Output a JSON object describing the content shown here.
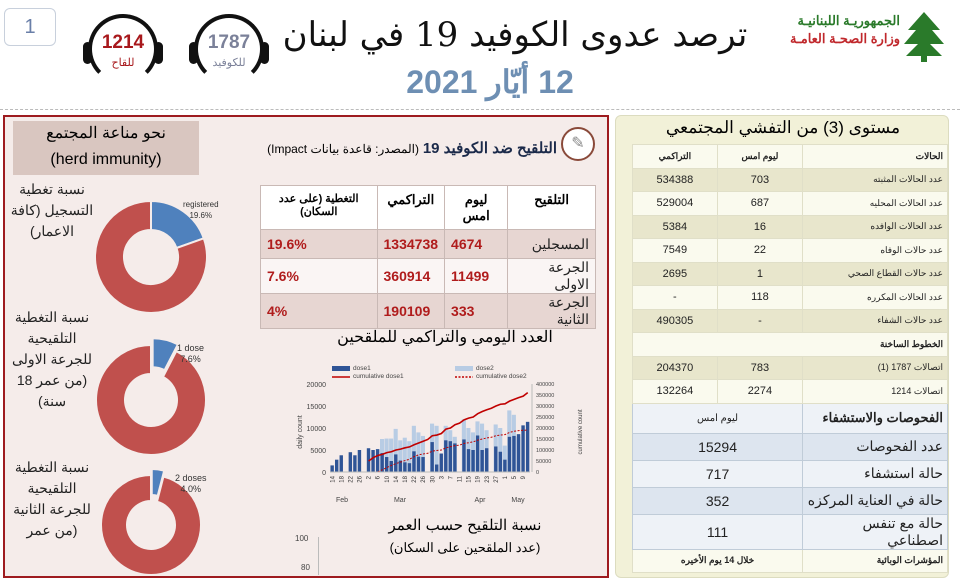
{
  "page_number": "1",
  "hotlines": [
    {
      "number": "1214",
      "label": "للقاح",
      "color": "#a8181c"
    },
    {
      "number": "1787",
      "label": "للكوفيد",
      "color": "#7b8199"
    }
  ],
  "header": {
    "title": "ترصد عدوى الكوفيد 19 في لبنان",
    "date": "12 أيّار 2021",
    "gov_line1": "الجمهوريـة اللبنانيـة",
    "gov_line2": "وزارة الصحـة العامـة",
    "gov_color1": "#2a7a2a",
    "gov_color2": "#c0282c"
  },
  "herd": {
    "line1": "نحو مناعة المجتمع",
    "line2": "(herd immunity)"
  },
  "donuts": [
    {
      "label": "نسبة تغطية التسجيل (كافة الاعمار)",
      "slice_label": "registered",
      "percent_text": "19.6%",
      "percent": 19.6
    },
    {
      "label": "نسبة التغطية التلقيحية للجرعة الاولى (من عمر 18 سنة)",
      "slice_label": "1 dose",
      "percent_text": "7.6%",
      "percent": 7.6
    },
    {
      "label": "نسبة التغطية التلقيحية للجرعة الثانية (من عمر",
      "slice_label": "2 doses",
      "percent_text": "4.0%",
      "percent": 4.0
    }
  ],
  "colors": {
    "blue": "#4f81bd",
    "red": "#c0504d",
    "dark_red": "#9e1b1f"
  },
  "vaccination": {
    "title": "التلقيح ضد الكوفيد 19",
    "source": "(المصدر: قاعدة بيانات Impact)",
    "headers": [
      "التلقيح",
      "ليوم امس",
      "التراكمي",
      "التغطية (على عدد السكان)"
    ],
    "rows": [
      [
        "المسجلين",
        "4674",
        "1334738",
        "19.6%"
      ],
      [
        "الجرعة الاولى",
        "11499",
        "360914",
        "7.6%"
      ],
      [
        "الجرعة الثانية",
        "333",
        "190109",
        "4%"
      ]
    ]
  },
  "chart_data": [
    {
      "type": "bar",
      "title": "العدد اليومي والتراكمي للملقحين",
      "ylabel": "daily count",
      "y2label": "cumulative count",
      "ylim": [
        0,
        20000
      ],
      "y2lim": [
        0,
        400000
      ],
      "yticks": [
        "0",
        "5000",
        "10000",
        "15000",
        "20000"
      ],
      "y2ticks": [
        "0",
        "50000",
        "100000",
        "150000",
        "200000",
        "250000",
        "300000",
        "350000",
        "400000"
      ],
      "xticks": [
        "14",
        "18",
        "22",
        "26",
        "2",
        "6",
        "10",
        "14",
        "18",
        "22",
        "26",
        "30",
        "3",
        "7",
        "11",
        "15",
        "19",
        "23",
        "27",
        "1",
        "5",
        "9"
      ],
      "months": [
        "Feb",
        "Mar",
        "Apr",
        "May"
      ],
      "legend": [
        "dose1",
        "dose2",
        "cumulative dose1",
        "cumulative dose2"
      ],
      "series": [
        {
          "name": "dose1",
          "values": [
            1500,
            2800,
            3800,
            0,
            4500,
            3800,
            5000,
            0,
            5400,
            5000,
            5200,
            4300,
            3400,
            2500,
            4000,
            2600,
            2200,
            2000,
            4700,
            3500,
            3400,
            0,
            6800,
            1700,
            4200,
            7200,
            7000,
            6500,
            0,
            7400,
            5200,
            5000,
            8300,
            5000,
            5400,
            0,
            5800,
            4600,
            2800,
            8000,
            8200,
            8600,
            10600,
            11400
          ]
        },
        {
          "name": "dose2",
          "values": [
            0,
            0,
            0,
            0,
            0,
            0,
            0,
            0,
            0,
            0,
            0,
            7500,
            7600,
            7600,
            9800,
            7200,
            7800,
            7000,
            10500,
            9000,
            8200,
            0,
            11000,
            10500,
            0,
            10500,
            9500,
            8000,
            0,
            12000,
            10000,
            9000,
            11500,
            11000,
            9500,
            0,
            10800,
            10000,
            6000,
            14000,
            13000,
            8000,
            0,
            0
          ]
        },
        {
          "name": "cumulative dose1",
          "values": [
            null,
            null,
            null,
            null,
            null,
            null,
            null,
            null,
            50000,
            65000,
            75000,
            80000,
            88000,
            92000,
            100000,
            104000,
            110000,
            114000,
            124000,
            132000,
            140000,
            148000,
            165000,
            168000,
            175000,
            195000,
            200000,
            215000,
            222000,
            237000,
            245000,
            250000,
            265000,
            275000,
            283000,
            290000,
            300000,
            308000,
            310000,
            322000,
            330000,
            338000,
            345000,
            360914
          ]
        },
        {
          "name": "cumulative dose2",
          "values": [
            null,
            null,
            null,
            null,
            null,
            null,
            null,
            null,
            null,
            null,
            0,
            10000,
            20000,
            30000,
            38000,
            45000,
            52000,
            58000,
            70000,
            78000,
            82000,
            85000,
            95000,
            98000,
            100000,
            110000,
            115000,
            120000,
            122000,
            130000,
            133000,
            137000,
            145000,
            150000,
            155000,
            158000,
            165000,
            168000,
            170000,
            180000,
            185000,
            188000,
            190000,
            190109
          ]
        }
      ]
    },
    {
      "type": "bar",
      "title": "نسبة التلقيح حسب العمر",
      "subtitle": "(عدد الملقحين على السكان)",
      "yticks": [
        "80",
        "100"
      ]
    }
  ],
  "community": {
    "title": "مستوى (3) من التفشي المجتمعي",
    "cases_header": [
      "الحالات",
      "ليوم امس",
      "التراكمي"
    ],
    "cases": [
      [
        "عدد الحالات المثبته",
        "703",
        "534388"
      ],
      [
        "عدد الحالات المحليه",
        "687",
        "529004"
      ],
      [
        "عدد الحالات الوافده",
        "16",
        "5384"
      ],
      [
        "عدد حالات الوفاه",
        "22",
        "7549"
      ],
      [
        "عدد حالات القطاع الصحي",
        "1",
        "2695"
      ],
      [
        "عدد الحالات المكرره",
        "118",
        "-"
      ],
      [
        "عدد حالات الشفاء",
        "-",
        "490305"
      ]
    ],
    "hotlines_header": "الخطوط الساخنة",
    "hotlines": [
      [
        "اتصالات 1787 (1)",
        "783",
        "204370"
      ],
      [
        "اتصالات 1214",
        "2274",
        "132264"
      ]
    ],
    "tests_header": [
      "الفحوصات والاستشفاء",
      "ليوم امس"
    ],
    "tests": [
      [
        "عدد الفحوصات",
        "15294"
      ],
      [
        "حالة استشفاء",
        "717"
      ],
      [
        "حالة في العناية المركزه",
        "352"
      ],
      [
        "حالة مع تنفس اصطناعي",
        "111"
      ]
    ],
    "indicators_header": [
      "المؤشرات الوبائية",
      "خلال 14 يوم الأخيره"
    ]
  }
}
